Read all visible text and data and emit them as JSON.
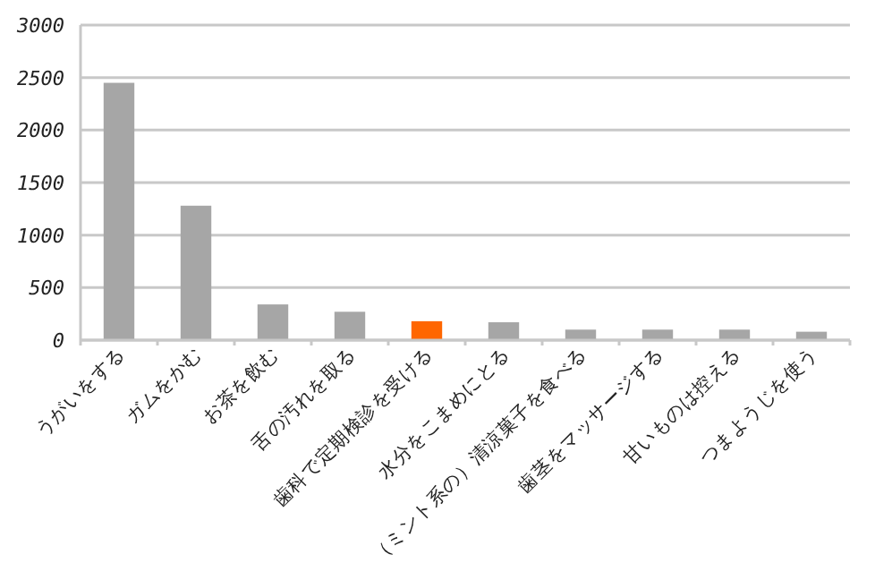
{
  "chart_data": {
    "type": "bar",
    "categories": [
      "うがいをする",
      "ガムをかむ",
      "お茶を飲む",
      "舌の汚れを取る",
      "歯科で定期検診を受ける",
      "水分をこまめにとる",
      "（ミント系の）清涼菓子を食べる",
      "歯茎をマッサージする",
      "甘いものは控える",
      "つまようじを使う"
    ],
    "values": [
      2450,
      1280,
      340,
      270,
      180,
      170,
      100,
      100,
      100,
      80
    ],
    "colors": [
      "#a6a6a6",
      "#a6a6a6",
      "#a6a6a6",
      "#a6a6a6",
      "#ff6600",
      "#a6a6a6",
      "#a6a6a6",
      "#a6a6a6",
      "#a6a6a6",
      "#a6a6a6"
    ],
    "ylim": [
      0,
      3000
    ],
    "yticks": [
      0,
      500,
      1000,
      1500,
      2000,
      2500,
      3000
    ],
    "grid": "y"
  }
}
